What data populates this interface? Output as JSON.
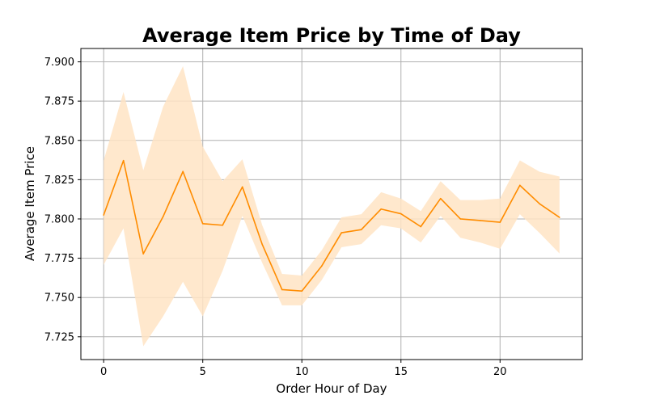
{
  "chart_data": {
    "type": "line",
    "title": "Average Item Price by Time of Day",
    "xlabel": "Order Hour of Day",
    "ylabel": "Average Item Price",
    "xlim": [
      -1.15,
      24.15
    ],
    "ylim": [
      7.7105,
      7.9085
    ],
    "xticks": [
      0,
      5,
      10,
      15,
      20
    ],
    "xtick_labels": [
      "0",
      "5",
      "10",
      "15",
      "20"
    ],
    "yticks": [
      7.725,
      7.75,
      7.775,
      7.8,
      7.825,
      7.85,
      7.875,
      7.9
    ],
    "ytick_labels": [
      "7.725",
      "7.750",
      "7.775",
      "7.800",
      "7.825",
      "7.850",
      "7.875",
      "7.900"
    ],
    "grid": true,
    "line_color": "#ff8c00",
    "band_color": "#ffe4c4",
    "x": [
      0,
      1,
      2,
      3,
      4,
      5,
      6,
      7,
      8,
      9,
      10,
      11,
      12,
      13,
      14,
      15,
      16,
      17,
      18,
      19,
      20,
      21,
      22,
      23
    ],
    "series": [
      {
        "values": [
          7.8025,
          7.8372,
          7.7778,
          7.8015,
          7.8302,
          7.797,
          7.796,
          7.8204,
          7.7838,
          7.755,
          7.7541,
          7.77,
          7.7912,
          7.7932,
          7.8063,
          7.8033,
          7.7951,
          7.813,
          7.8,
          7.799,
          7.7979,
          7.8214,
          7.8096,
          7.801
        ],
        "ci_lower": [
          7.7708,
          7.794,
          7.719,
          7.738,
          7.76,
          7.738,
          7.767,
          7.802,
          7.772,
          7.745,
          7.745,
          7.761,
          7.782,
          7.784,
          7.796,
          7.794,
          7.785,
          7.802,
          7.788,
          7.785,
          7.781,
          7.803,
          7.791,
          7.778
        ],
        "ci_upper": [
          7.8372,
          7.8808,
          7.831,
          7.8715,
          7.8972,
          7.846,
          7.824,
          7.838,
          7.796,
          7.765,
          7.764,
          7.78,
          7.801,
          7.803,
          7.817,
          7.813,
          7.805,
          7.824,
          7.812,
          7.812,
          7.813,
          7.8373,
          7.83,
          7.827
        ]
      }
    ]
  }
}
